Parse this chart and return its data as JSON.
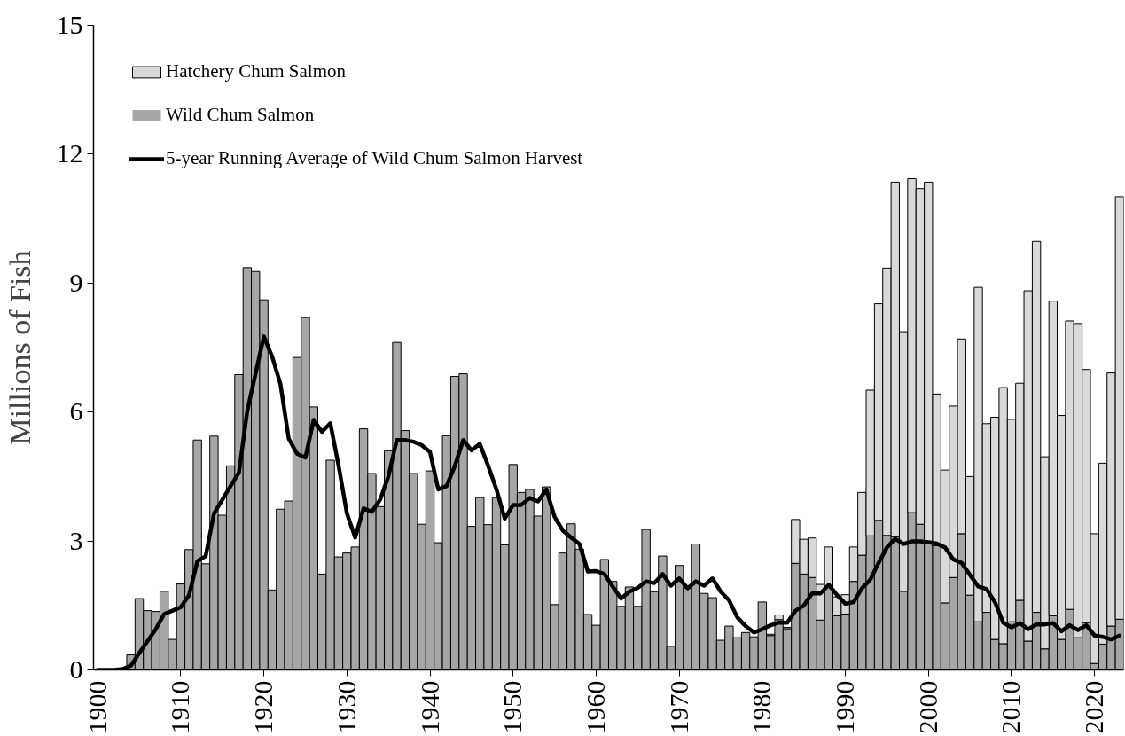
{
  "chart_data": {
    "type": "bar",
    "stacked": true,
    "ylabel": "Millions of Fish",
    "x": [
      1900,
      1901,
      1902,
      1903,
      1904,
      1905,
      1906,
      1907,
      1908,
      1909,
      1910,
      1911,
      1912,
      1913,
      1914,
      1915,
      1916,
      1917,
      1918,
      1919,
      1920,
      1921,
      1922,
      1923,
      1924,
      1925,
      1926,
      1927,
      1928,
      1929,
      1930,
      1931,
      1932,
      1933,
      1934,
      1935,
      1936,
      1937,
      1938,
      1939,
      1940,
      1941,
      1942,
      1943,
      1944,
      1945,
      1946,
      1947,
      1948,
      1949,
      1950,
      1951,
      1952,
      1953,
      1954,
      1955,
      1956,
      1957,
      1958,
      1959,
      1960,
      1961,
      1962,
      1963,
      1964,
      1965,
      1966,
      1967,
      1968,
      1969,
      1970,
      1971,
      1972,
      1973,
      1974,
      1975,
      1976,
      1977,
      1978,
      1979,
      1980,
      1981,
      1982,
      1983,
      1984,
      1985,
      1986,
      1987,
      1988,
      1989,
      1990,
      1991,
      1992,
      1993,
      1994,
      1995,
      1996,
      1997,
      1998,
      1999,
      2000,
      2001,
      2002,
      2003,
      2004,
      2005,
      2006,
      2007,
      2008,
      2009,
      2010,
      2011,
      2012,
      2013,
      2014,
      2015,
      2016,
      2017,
      2018,
      2019,
      2020,
      2021,
      2022,
      2023
    ],
    "series": [
      {
        "name": "Wild Chum Salmon",
        "color": "#a6a6a6",
        "values": [
          0,
          0,
          0,
          0,
          0.35,
          1.66,
          1.38,
          1.36,
          1.83,
          0.71,
          2.0,
          2.8,
          5.35,
          2.47,
          5.44,
          3.6,
          4.75,
          6.87,
          9.36,
          9.27,
          8.61,
          1.86,
          3.74,
          3.93,
          7.27,
          8.2,
          6.12,
          2.23,
          4.88,
          2.63,
          2.72,
          2.86,
          5.61,
          4.57,
          3.8,
          5.1,
          7.62,
          5.57,
          4.57,
          3.39,
          4.63,
          2.96,
          5.45,
          6.83,
          6.89,
          3.34,
          4.01,
          3.38,
          4.01,
          2.91,
          4.78,
          4.13,
          4.2,
          3.58,
          4.26,
          1.52,
          2.72,
          3.4,
          2.81,
          1.29,
          1.04,
          2.57,
          2.06,
          1.48,
          1.93,
          1.48,
          3.27,
          1.82,
          2.65,
          0.55,
          2.43,
          1.91,
          2.93,
          1.78,
          1.68,
          0.69,
          1.02,
          0.75,
          0.87,
          0.77,
          1.58,
          0.8,
          1.17,
          0.96,
          2.48,
          2.23,
          2.15,
          1.16,
          1.95,
          1.26,
          1.3,
          2.06,
          2.67,
          3.12,
          3.48,
          3.13,
          3.1,
          1.83,
          3.66,
          3.39,
          2.93,
          2.89,
          1.56,
          2.15,
          3.17,
          1.74,
          1.12,
          1.34,
          0.71,
          0.61,
          1.12,
          1.62,
          0.67,
          1.34,
          0.49,
          1.26,
          0.71,
          1.41,
          0.75,
          1.1,
          0.15,
          0.6,
          1.02,
          1.18
        ]
      },
      {
        "name": "Hatchery Chum Salmon",
        "color": "#d9d9d9",
        "values": [
          null,
          null,
          null,
          null,
          null,
          null,
          null,
          null,
          null,
          null,
          null,
          null,
          null,
          null,
          null,
          null,
          null,
          null,
          null,
          null,
          null,
          null,
          null,
          null,
          null,
          null,
          null,
          null,
          null,
          null,
          null,
          null,
          null,
          null,
          null,
          null,
          null,
          null,
          null,
          null,
          null,
          null,
          null,
          null,
          null,
          null,
          null,
          null,
          null,
          null,
          null,
          null,
          null,
          null,
          null,
          null,
          null,
          null,
          null,
          null,
          null,
          null,
          null,
          null,
          null,
          null,
          null,
          null,
          null,
          null,
          null,
          null,
          null,
          null,
          null,
          null,
          null,
          null,
          null,
          null,
          null,
          0.03,
          0.11,
          0.03,
          1.02,
          0.81,
          0.92,
          0.83,
          0.91,
          0.44,
          0.45,
          0.8,
          1.46,
          3.39,
          5.04,
          6.22,
          8.25,
          6.04,
          7.77,
          7.81,
          8.42,
          3.53,
          3.09,
          3.99,
          4.53,
          2.76,
          7.78,
          4.39,
          5.17,
          5.96,
          4.71,
          5.05,
          8.15,
          8.63,
          4.47,
          7.32,
          5.21,
          6.71,
          7.31,
          5.89,
          3.02,
          4.21,
          5.89,
          9.83
        ]
      },
      {
        "name": "5-year Running Average of Wild Chum Salmon Harvest",
        "type": "line",
        "color": "#000000",
        "values": [
          0,
          0,
          0,
          0.02,
          0.1,
          0.39,
          0.67,
          0.95,
          1.3,
          1.38,
          1.46,
          1.74,
          2.53,
          2.65,
          3.64,
          3.96,
          4.28,
          4.59,
          6.02,
          6.89,
          7.76,
          7.29,
          6.65,
          5.38,
          5.03,
          4.94,
          5.82,
          5.54,
          5.74,
          4.75,
          3.64,
          3.08,
          3.76,
          3.68,
          3.96,
          4.51,
          5.35,
          5.35,
          5.31,
          5.23,
          5.07,
          4.2,
          4.28,
          4.75,
          5.35,
          5.11,
          5.26,
          4.75,
          4.2,
          3.52,
          3.84,
          3.84,
          4.0,
          3.92,
          4.2,
          3.56,
          3.24,
          3.08,
          2.93,
          2.29,
          2.3,
          2.23,
          1.94,
          1.66,
          1.82,
          1.91,
          2.06,
          2.02,
          2.23,
          1.96,
          2.13,
          1.9,
          2.06,
          1.96,
          2.13,
          1.82,
          1.62,
          1.22,
          1.02,
          0.87,
          0.95,
          1.04,
          1.1,
          1.1,
          1.38,
          1.5,
          1.78,
          1.78,
          1.98,
          1.74,
          1.54,
          1.58,
          1.9,
          2.1,
          2.49,
          2.85,
          3.05,
          2.93,
          2.99,
          2.99,
          2.97,
          2.94,
          2.85,
          2.57,
          2.49,
          2.21,
          1.94,
          1.88,
          1.58,
          1.1,
          0.99,
          1.09,
          0.95,
          1.06,
          1.06,
          1.09,
          0.9,
          1.04,
          0.93,
          1.04,
          0.8,
          0.77,
          0.71,
          0.8
        ]
      }
    ],
    "xlim": [
      1899.5,
      2023.5
    ],
    "xticks": [
      1900,
      1910,
      1920,
      1930,
      1940,
      1950,
      1960,
      1970,
      1980,
      1990,
      2000,
      2010,
      2020
    ],
    "ylim": [
      0,
      15
    ],
    "yticks": [
      0,
      3,
      6,
      9,
      12,
      15
    ],
    "legend": "top left"
  }
}
